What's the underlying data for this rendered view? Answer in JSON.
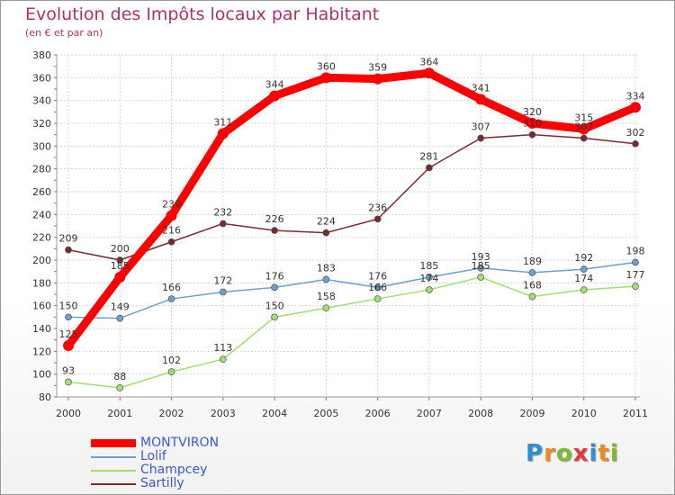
{
  "header": {
    "title": "Evolution des Impôts locaux par Habitant",
    "subtitle": "(en € et par an)"
  },
  "logo": {
    "letters": [
      "P",
      "r",
      "o",
      "x",
      "i",
      "t",
      "i"
    ],
    "colors": [
      "#2f8fd6",
      "#f08a1c",
      "#7cbb2b",
      "#e23a3a",
      "#2f8fd6",
      "#f08a1c",
      "#7cbb2b"
    ]
  },
  "chart_data": {
    "type": "line",
    "x": [
      "2000",
      "2001",
      "2002",
      "2003",
      "2004",
      "2005",
      "2006",
      "2007",
      "2008",
      "2009",
      "2010",
      "2011"
    ],
    "yticks": [
      80,
      100,
      120,
      140,
      160,
      180,
      200,
      220,
      240,
      260,
      280,
      300,
      320,
      340,
      360,
      380
    ],
    "ylim": [
      80,
      380
    ],
    "grid": true,
    "legend_position": "bottom-left",
    "series": [
      {
        "name": "MONTVIRON",
        "color": "#ff0000",
        "values": [
          125,
          185,
          239,
          311,
          344,
          360,
          359,
          364,
          341,
          320,
          315,
          334
        ],
        "labels": [
          "125",
          "185",
          "239",
          "311",
          "344",
          "360",
          "359",
          "364",
          "341",
          "320",
          "315",
          "334"
        ]
      },
      {
        "name": "Lolif",
        "color": "#6d9fd0",
        "values": [
          150,
          149,
          166,
          172,
          176,
          183,
          176,
          185,
          193,
          189,
          192,
          198
        ],
        "labels": [
          "150",
          "149",
          "166",
          "172",
          "176",
          "183",
          "176",
          "185",
          "193",
          "189",
          "192",
          "198"
        ]
      },
      {
        "name": "Champcey",
        "color": "#9fe070",
        "values": [
          93,
          88,
          102,
          113,
          150,
          158,
          166,
          174,
          185,
          168,
          174,
          177
        ],
        "labels": [
          "93",
          "88",
          "102",
          "113",
          "150",
          "158",
          "166",
          "174",
          "185",
          "168",
          "174",
          "177"
        ]
      },
      {
        "name": "Sartilly",
        "color": "#7a2a2f",
        "values": [
          209,
          200,
          216,
          232,
          226,
          224,
          236,
          281,
          307,
          310,
          307,
          302
        ],
        "labels": [
          "209",
          "200",
          "216",
          "232",
          "226",
          "224",
          "236",
          "281",
          "307",
          "310",
          "307",
          "302"
        ]
      }
    ]
  }
}
